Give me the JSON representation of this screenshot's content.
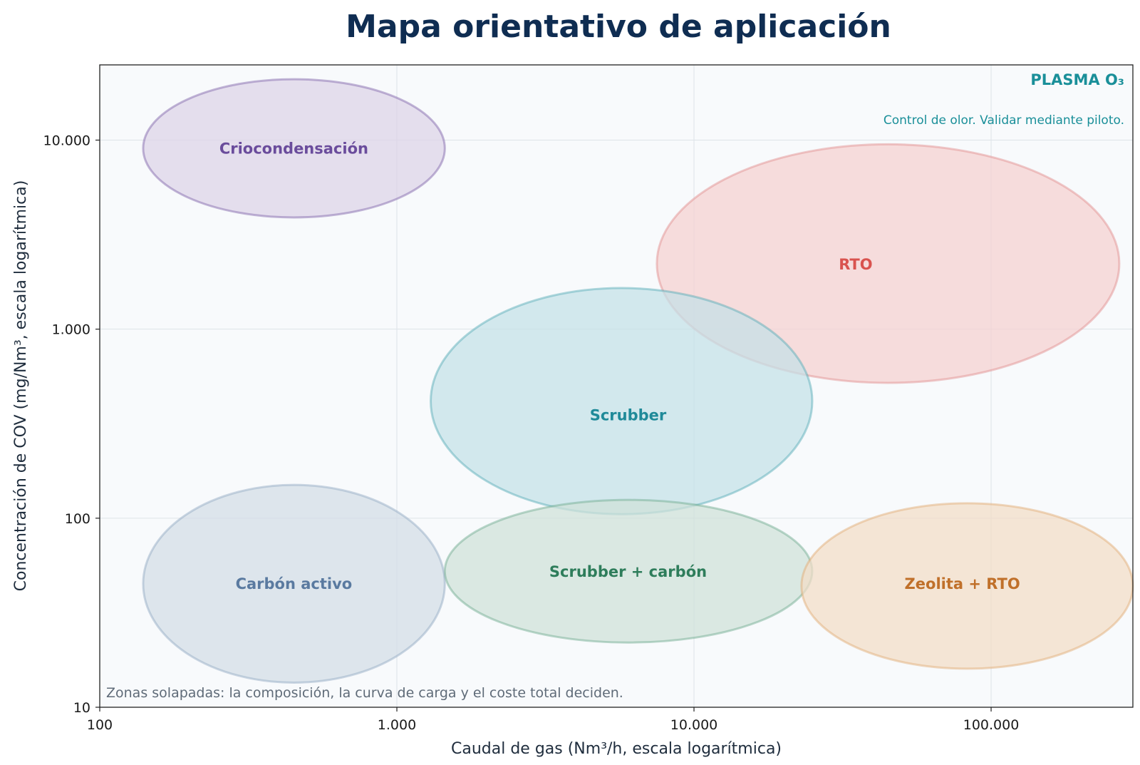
{
  "chart_data": {
    "type": "scatter",
    "title": "Mapa orientativo de aplicación",
    "xlabel": "Caudal de gas (Nm³/h, escala logarítmica)",
    "ylabel": "Concentración de COV (mg/Nm³, escala logarítmica)",
    "xscale": "log",
    "yscale": "log",
    "xlim": [
      100,
      300000
    ],
    "ylim": [
      10,
      25000
    ],
    "xticks": [
      100,
      1000,
      10000,
      100000
    ],
    "xtick_labels": [
      "100",
      "1.000",
      "10.000",
      "100.000"
    ],
    "yticks": [
      10,
      100,
      1000,
      10000
    ],
    "ytick_labels": [
      "10",
      "100",
      "1.000",
      "10.000"
    ],
    "grid": true,
    "zones": [
      {
        "name": "Criocondensación",
        "x_center": 450,
        "y_center": 9000,
        "x_range": [
          140,
          1450
        ],
        "y_range": [
          3900,
          21000
        ],
        "color": "#7b5ea7",
        "fill": "#dcd2e7",
        "label_color": "#6a4c9c"
      },
      {
        "name": "RTO",
        "x_center": 35000,
        "y_center": 2200,
        "x_range": [
          7500,
          270000
        ],
        "y_range": [
          520,
          9500
        ],
        "color": "#e08a8a",
        "fill": "#f5d0d0",
        "label_color": "#d9534f"
      },
      {
        "name": "Scrubber",
        "x_center": 6000,
        "y_center": 350,
        "x_range": [
          1300,
          25000
        ],
        "y_range": [
          105,
          1650
        ],
        "color": "#4fa9b3",
        "fill": "#c3e1e7",
        "label_color": "#1f8a99"
      },
      {
        "name": "Carbón activo",
        "x_center": 450,
        "y_center": 45,
        "x_range": [
          140,
          1450
        ],
        "y_range": [
          13.5,
          150
        ],
        "color": "#8fa6c2",
        "fill": "#d3dde6",
        "label_color": "#5a7aa0"
      },
      {
        "name": "Scrubber + carbón",
        "x_center": 6000,
        "y_center": 52,
        "x_range": [
          1450,
          25000
        ],
        "y_range": [
          22,
          125
        ],
        "color": "#6aa88c",
        "fill": "#cfe0d8",
        "label_color": "#2e7d5b"
      },
      {
        "name": "Zeolita + RTO",
        "x_center": 80000,
        "y_center": 45,
        "x_range": [
          23000,
          300000
        ],
        "y_range": [
          16,
          120
        ],
        "color": "#e0a86e",
        "fill": "#f2dcc6",
        "label_color": "#c0702a"
      }
    ],
    "annotations": {
      "plasma_title": "PLASMA O₃",
      "plasma_note": "Control de olor. Validar mediante piloto.",
      "footnote": "Zonas solapadas: la composición, la curva de carga y el coste total deciden."
    }
  }
}
